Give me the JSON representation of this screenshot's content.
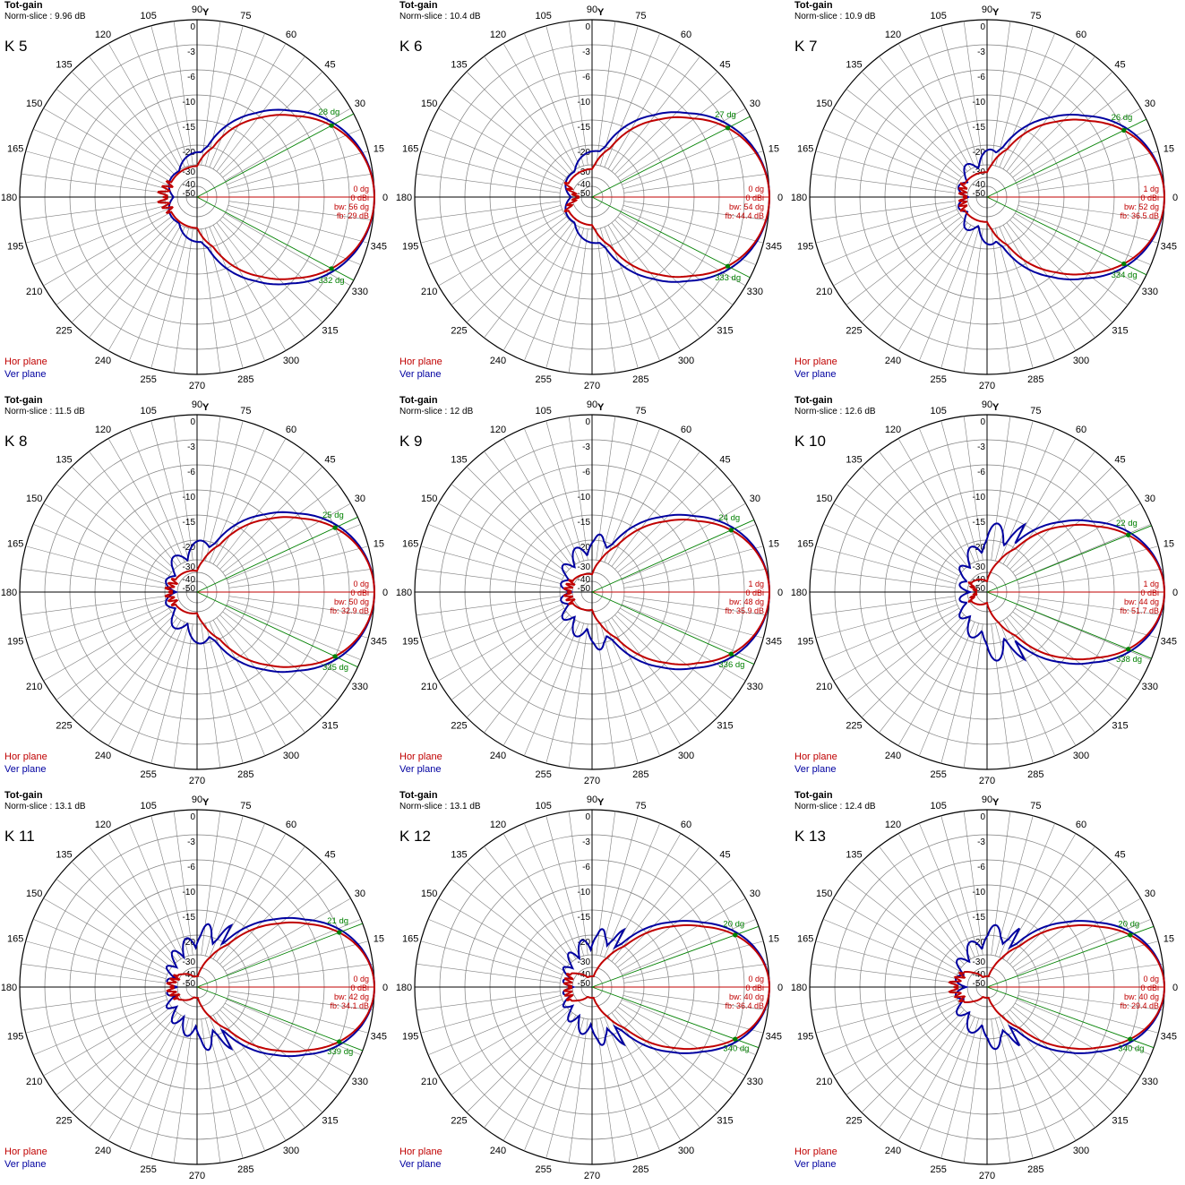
{
  "common": {
    "title": "Tot-gain",
    "norm_prefix": "Norm-slice : ",
    "legend": {
      "hor": "Hor plane",
      "ver": "Ver plane"
    },
    "colors": {
      "hor": "#c00000",
      "ver": "#0000a0",
      "marker": "#008000",
      "grid": "#808080",
      "axis": "#000000"
    },
    "angle_labels": [
      "0",
      "15",
      "30",
      "45",
      "60",
      "75",
      "90",
      "105",
      "120",
      "135",
      "150",
      "165",
      "180",
      "195",
      "210",
      "225",
      "240",
      "255",
      "270",
      "285",
      "300",
      "315",
      "330",
      "345"
    ],
    "y_axis_marker": "Y",
    "db_ticks": [
      "0",
      "-3",
      "-6",
      "-10",
      "-15",
      "-20",
      "-30",
      "-40",
      "-50"
    ]
  },
  "chart_data": [
    {
      "type": "polar",
      "label": "K 5",
      "norm_slice": "9.96 dB",
      "beam_dir": "0 dg",
      "gain": "0 dBi",
      "bw": "bw: 56 dg",
      "fb": "fb: 29 dB",
      "marker_hi": "28 dg",
      "marker_lo": "332 dg",
      "hi_deg": 28,
      "lo_deg": 332,
      "halfbeam": 28,
      "fb_db": 29,
      "side_db": -32,
      "ver_side": -21,
      "ver_back": -34,
      "ver_lobes": 2
    },
    {
      "type": "polar",
      "label": "K 6",
      "norm_slice": "10.4 dB",
      "beam_dir": "0 dg",
      "gain": "0 dBi",
      "bw": "bw: 54 dg",
      "fb": "fb: 44.4 dB",
      "marker_hi": "27 dg",
      "marker_lo": "333 dg",
      "hi_deg": 27,
      "lo_deg": 333,
      "halfbeam": 27,
      "fb_db": 44.4,
      "side_db": -34,
      "ver_side": -20,
      "ver_back": -36,
      "ver_lobes": 2
    },
    {
      "type": "polar",
      "label": "K 7",
      "norm_slice": "10.9 dB",
      "beam_dir": "1 dg",
      "gain": "0 dBi",
      "bw": "bw: 52 dg",
      "fb": "fb: 36.5 dB",
      "marker_hi": "26 dg",
      "marker_lo": "334 dg",
      "hi_deg": 26,
      "lo_deg": 334,
      "halfbeam": 26,
      "fb_db": 36.5,
      "side_db": -35,
      "ver_side": -20,
      "ver_back": -34,
      "ver_lobes": 3
    },
    {
      "type": "polar",
      "label": "K 8",
      "norm_slice": "11.5 dB",
      "beam_dir": "0 dg",
      "gain": "0 dBi",
      "bw": "bw: 50 dg",
      "fb": "fb: 32.9 dB",
      "marker_hi": "25 dg",
      "marker_lo": "335 dg",
      "hi_deg": 25,
      "lo_deg": 335,
      "halfbeam": 25,
      "fb_db": 32.9,
      "side_db": -36,
      "ver_side": -18,
      "ver_back": -32,
      "ver_lobes": 3
    },
    {
      "type": "polar",
      "label": "K 9",
      "norm_slice": "12 dB",
      "beam_dir": "1 dg",
      "gain": "0 dBi",
      "bw": "bw: 48 dg",
      "fb": "fb: 35.9 dB",
      "marker_hi": "24 dg",
      "marker_lo": "336 dg",
      "hi_deg": 24,
      "lo_deg": 336,
      "halfbeam": 24,
      "fb_db": 35.9,
      "side_db": -38,
      "ver_side": -17,
      "ver_back": -32,
      "ver_lobes": 4
    },
    {
      "type": "polar",
      "label": "K 10",
      "norm_slice": "12.6 dB",
      "beam_dir": "1 dg",
      "gain": "0 dBi",
      "bw": "bw: 44 dg",
      "fb": "fb: 51.7 dB",
      "marker_hi": "22 dg",
      "marker_lo": "338 dg",
      "hi_deg": 22,
      "lo_deg": 338,
      "halfbeam": 22,
      "fb_db": 51.7,
      "side_db": -42,
      "ver_side": -14,
      "ver_back": -36,
      "ver_lobes": 4
    },
    {
      "type": "polar",
      "label": "K 11",
      "norm_slice": "13.1 dB",
      "beam_dir": "0 dg",
      "gain": "0 dBi",
      "bw": "bw: 42 dg",
      "fb": "fb: 34.1 dB",
      "marker_hi": "21 dg",
      "marker_lo": "339 dg",
      "hi_deg": 21,
      "lo_deg": 339,
      "halfbeam": 21,
      "fb_db": 34.1,
      "side_db": -38,
      "ver_side": -16,
      "ver_back": -33,
      "ver_lobes": 5
    },
    {
      "type": "polar",
      "label": "K 12",
      "norm_slice": "13.1 dB",
      "beam_dir": "0 dg",
      "gain": "0 dBi",
      "bw": "bw: 40 dg",
      "fb": "fb: 36.4 dB",
      "marker_hi": "20 dg",
      "marker_lo": "340 dg",
      "hi_deg": 20,
      "lo_deg": 340,
      "halfbeam": 20,
      "fb_db": 36.4,
      "side_db": -36,
      "ver_side": -17,
      "ver_back": -34,
      "ver_lobes": 5
    },
    {
      "type": "polar",
      "label": "K 13",
      "norm_slice": "12.4 dB",
      "beam_dir": "0 dg",
      "gain": "0 dBi",
      "bw": "bw: 40 dg",
      "fb": "fb: 29.4 dB",
      "marker_hi": "20 dg",
      "marker_lo": "340 dg",
      "hi_deg": 20,
      "lo_deg": 340,
      "halfbeam": 20,
      "fb_db": 29.4,
      "side_db": -34,
      "ver_side": -16,
      "ver_back": -32,
      "ver_lobes": 4
    }
  ]
}
